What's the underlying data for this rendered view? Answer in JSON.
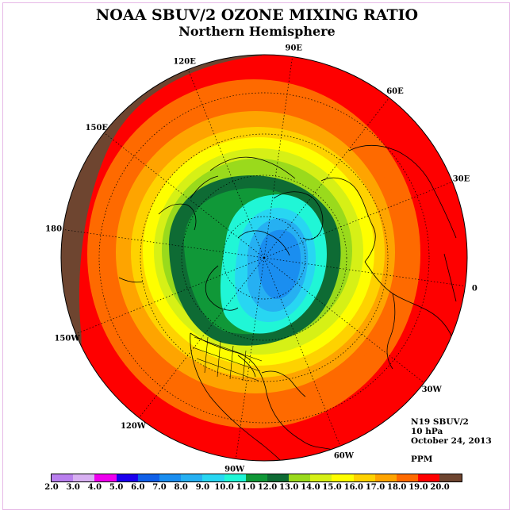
{
  "title": "NOAA SBUV/2 OZONE MIXING RATIO",
  "subtitle": "Northern Hemisphere",
  "info": {
    "instrument": "N19 SBUV/2",
    "level": "10 hPa",
    "date": "October 24, 2013",
    "units": "PPM"
  },
  "longitude_labels": [
    {
      "text": "90E",
      "lon": 90
    },
    {
      "text": "60E",
      "lon": 60
    },
    {
      "text": "30E",
      "lon": 30
    },
    {
      "text": "0",
      "lon": 0
    },
    {
      "text": "30W",
      "lon": -30
    },
    {
      "text": "60W",
      "lon": -60
    },
    {
      "text": "90W",
      "lon": -90
    },
    {
      "text": "120W",
      "lon": -120
    },
    {
      "text": "150W",
      "lon": -150
    },
    {
      "text": "180",
      "lon": 180
    },
    {
      "text": "150E",
      "lon": 150
    },
    {
      "text": "120E",
      "lon": 120
    }
  ],
  "colorbar": {
    "labels": [
      "2.0",
      "3.0",
      "4.0",
      "5.0",
      "6.0",
      "7.0",
      "8.0",
      "9.0",
      "10.0",
      "11.0",
      "12.0",
      "13.0",
      "14.0",
      "15.0",
      "16.0",
      "17.0",
      "18.0",
      "19.0",
      "20.0"
    ],
    "colors": [
      "#b97fee",
      "#d8b0f2",
      "#ee00ee",
      "#1c00ee",
      "#1060e8",
      "#1a8ef0",
      "#26b0f2",
      "#28d6f2",
      "#20f6d6",
      "#109838",
      "#0e6b34",
      "#9ada1c",
      "#d6f016",
      "#fefe00",
      "#fed200",
      "#fea400",
      "#fe6a00",
      "#fe0000",
      "#6e4530"
    ]
  }
}
